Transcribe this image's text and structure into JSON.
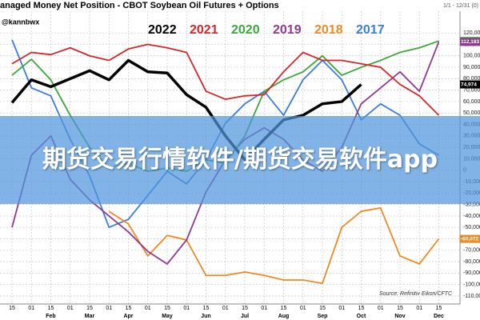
{
  "chart_data": {
    "type": "line",
    "title": "anaged Money Net Position - CBOT Soybean Oil Futures + Options",
    "handle": "@kannbwx",
    "range_note": "1/1 - 12/31 (0)",
    "source": "Source: Refinitiv Eikon/CFTC",
    "categories": [
      "15",
      "01",
      "15",
      "01",
      "15",
      "01",
      "15",
      "01",
      "15",
      "01",
      "15",
      "01",
      "15",
      "01",
      "15",
      "01",
      "15",
      "01",
      "15",
      "01",
      "15",
      "01",
      "15"
    ],
    "months": [
      "Feb",
      "Mar",
      "Apr",
      "May",
      "Jun",
      "Jul",
      "Aug",
      "Sep",
      "Oct",
      "Nov",
      "Dec"
    ],
    "series": [
      {
        "name": "2022",
        "color": "#000000",
        "values": [
          59000,
          79000,
          73000,
          80000,
          87000,
          79000,
          96000,
          86000,
          85000,
          66000,
          55000,
          30000,
          9000,
          27000,
          44000,
          48000,
          58000,
          60000,
          74974,
          null,
          null,
          null,
          null
        ],
        "value_labels": [
          null,
          null,
          null,
          null,
          null,
          null,
          null,
          null,
          null,
          null,
          null,
          null,
          null,
          null,
          null,
          null,
          null,
          null,
          "74,974",
          null,
          null,
          null,
          null
        ]
      },
      {
        "name": "2021",
        "color": "#d6262b",
        "values": [
          93000,
          103000,
          101000,
          107000,
          100000,
          96000,
          106000,
          110000,
          107000,
          103000,
          69000,
          62000,
          65000,
          66000,
          86000,
          103000,
          96000,
          96000,
          93000,
          90000,
          75000,
          65000,
          48000
        ]
      },
      {
        "name": "2020",
        "color": "#3aa83a",
        "values": [
          83000,
          97000,
          79000,
          48000,
          20000,
          2000,
          6000,
          -1000,
          2000,
          -1000,
          9000,
          6000,
          30000,
          69000,
          79000,
          86000,
          100000,
          83000,
          90000,
          96000,
          103000,
          107000,
          112989
        ],
        "value_labels": [
          null,
          null,
          null,
          null,
          null,
          null,
          null,
          null,
          null,
          null,
          null,
          null,
          null,
          null,
          null,
          null,
          null,
          null,
          null,
          null,
          null,
          null,
          "112,989"
        ]
      },
      {
        "name": "2019",
        "color": "#8e3a8e",
        "values": [
          -50000,
          13000,
          30000,
          -8000,
          -26000,
          -40000,
          -54000,
          -71000,
          -82000,
          -61000,
          -19000,
          9000,
          27000,
          37000,
          27000,
          9000,
          -1000,
          20000,
          58000,
          72000,
          86000,
          69000,
          112183
        ],
        "value_labels": [
          null,
          null,
          null,
          null,
          null,
          null,
          null,
          null,
          null,
          null,
          null,
          null,
          null,
          null,
          null,
          null,
          null,
          null,
          null,
          null,
          null,
          null,
          "112,183"
        ]
      },
      {
        "name": "2018",
        "color": "#ee8a24",
        "values": [
          null,
          null,
          null,
          null,
          null,
          -36000,
          -47000,
          -75000,
          -57000,
          -61000,
          -92000,
          -92000,
          -89000,
          -92000,
          -96000,
          -96000,
          -99000,
          -50000,
          -36000,
          -33000,
          -75000,
          -82000,
          -60072
        ],
        "value_labels": [
          null,
          null,
          null,
          null,
          null,
          null,
          null,
          null,
          null,
          null,
          null,
          null,
          null,
          null,
          null,
          null,
          null,
          null,
          null,
          null,
          null,
          null,
          "-60,072"
        ]
      },
      {
        "name": "2017",
        "color": "#3b7dd8",
        "values": [
          114000,
          72000,
          65000,
          27000,
          -5000,
          -50000,
          -43000,
          -22000,
          -1000,
          -12000,
          9000,
          41000,
          58000,
          69000,
          48000,
          79000,
          96000,
          79000,
          44000,
          58000,
          48000,
          23000,
          13000
        ]
      }
    ],
    "ylim": [
      -117000,
      139000
    ],
    "yticks": [
      {
        "value": 120000,
        "label": "120,000"
      },
      {
        "value": 110000,
        "label": "110,000"
      },
      {
        "value": 100000,
        "label": "100,000"
      },
      {
        "value": 90000,
        "label": "90,000"
      },
      {
        "value": 80000,
        "label": "80,000"
      },
      {
        "value": 70000,
        "label": "70,000"
      },
      {
        "value": 60000,
        "label": "60,000"
      },
      {
        "value": 50000,
        "label": "50,000"
      },
      {
        "value": 40000,
        "label": "40,000"
      },
      {
        "value": 30000,
        "label": "30,000"
      },
      {
        "value": 20000,
        "label": "20,000"
      },
      {
        "value": 10000,
        "label": "10,000"
      },
      0,
      {
        "value": -10000,
        "label": "-10,000"
      },
      {
        "value": -20000,
        "label": "-20,000"
      },
      {
        "value": -30000,
        "label": "-30,000"
      },
      {
        "value": -40000,
        "label": "-40,000"
      },
      {
        "value": -50000,
        "label": "-50,000"
      },
      {
        "value": -60000,
        "label": "-60,000"
      },
      {
        "value": -70000,
        "label": "-70,000"
      },
      {
        "value": -80000,
        "label": "-80,000"
      },
      {
        "value": -90000,
        "label": "-90,000"
      },
      {
        "value": -100000,
        "label": "-100,000"
      },
      {
        "value": -110000,
        "label": "-110,000"
      }
    ],
    "grid": true
  },
  "overlay": {
    "text": "期货交易行情软件/期货交易软件app"
  }
}
